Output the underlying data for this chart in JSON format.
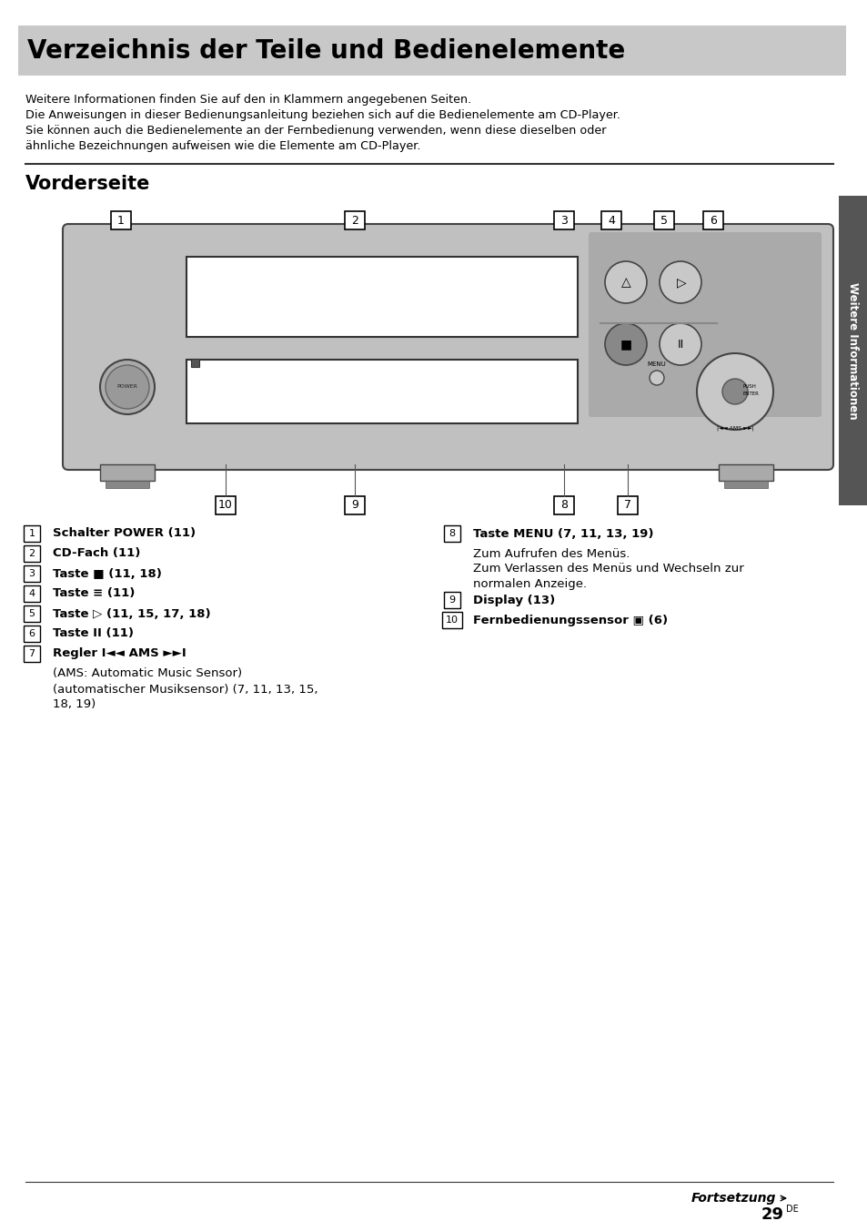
{
  "title": "Verzeichnis der Teile und Bedienelemente",
  "title_bg": "#c8c8c8",
  "page_bg": "#ffffff",
  "section_title": "Vorderseite",
  "intro_lines": [
    "Weitere Informationen finden Sie auf den in Klammern angegebenen Seiten.",
    "Die Anweisungen in dieser Bedienungsanleitung beziehen sich auf die Bedienelemente am CD-Player.",
    "Sie können auch die Bedienelemente an der Fernbedienung verwenden, wenn diese dieselben oder",
    "ähnliche Bezeichnungen aufweisen wie die Elemente am CD-Player."
  ],
  "sidebar_text": "Weitere Informationen",
  "sidebar_bg": "#555555",
  "items_left": [
    {
      "num": "1",
      "bold": "Schalter POWER (11)",
      "subs": []
    },
    {
      "num": "2",
      "bold": "CD-Fach (11)",
      "subs": []
    },
    {
      "num": "3",
      "bold": "Taste ■ (11, 18)",
      "subs": []
    },
    {
      "num": "4",
      "bold": "Taste ≡ (11)",
      "subs": []
    },
    {
      "num": "5",
      "bold": "Taste ▷ (11, 15, 17, 18)",
      "subs": []
    },
    {
      "num": "6",
      "bold": "Taste II (11)",
      "subs": []
    },
    {
      "num": "7",
      "bold": "Regler I◄◄ AMS ►►I",
      "subs": [
        "(AMS: Automatic Music Sensor)",
        "(automatischer Musiksensor) (7, 11, 13, 15,",
        "18, 19)"
      ]
    }
  ],
  "items_right": [
    {
      "num": "8",
      "bold": "Taste MENU (7, 11, 13, 19)",
      "subs": [
        "Zum Aufrufen des Menüs.",
        "Zum Verlassen des Menüs und Wechseln zur",
        "normalen Anzeige."
      ]
    },
    {
      "num": "9",
      "bold": "Display (13)",
      "subs": []
    },
    {
      "num": "10",
      "bold": "Fernbedienungssensor ▣ (6)",
      "subs": []
    }
  ],
  "footer_text": "Fortsetzung",
  "page_number": "29",
  "page_number_sup": "DE",
  "body_color": "#c0c0c0",
  "body_edge": "#444444",
  "button_color": "#b0b0b0",
  "tray_color": "#ffffff",
  "right_panel_color": "#aaaaaa"
}
